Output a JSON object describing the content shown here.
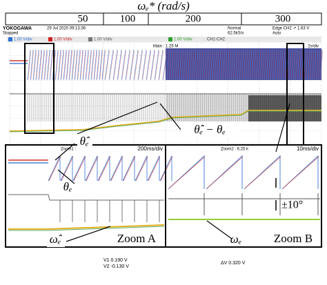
{
  "header": {
    "title": "ωₑ* (rad/s)",
    "speed_labels": [
      "50",
      "100",
      "200",
      "300"
    ]
  },
  "scope": {
    "brand": "YOKOGAWA",
    "status": "Stopped",
    "date": "29 Jul 2020 09:13:36",
    "mode": "Normal",
    "rate": "62.5kS/s",
    "trigger": "Edge CH2 ↗ 1.63 V",
    "trigger_mode": "Auto",
    "channels": [
      "1.00 V/div",
      "1.00 V/div",
      "1.00 V/div",
      "1.00 V/div"
    ],
    "main": "Main : 1.25 M",
    "timebase": "2s/div",
    "math": "CH1-CH2"
  },
  "annotations": {
    "theta_hat": "θ̂ₑ",
    "error": "θ̂ₑ − θₑ",
    "theta": "θₑ",
    "omega_hat": "ω̂ₑ",
    "omega": "ωₑ",
    "bound": "±10°"
  },
  "zoom_a": {
    "label": "Zoom A",
    "info": "Zoom1 : 125 k",
    "timebase": "200ms/div"
  },
  "zoom_b": {
    "label": "Zoom B",
    "info": "Zoom2 : 6.25 k",
    "timebase": "10ms/div"
  },
  "cursors": {
    "v1": "V1  0.190 V",
    "v2": "V2  -0.130 V",
    "dv": "ΔV  0.320 V"
  }
}
